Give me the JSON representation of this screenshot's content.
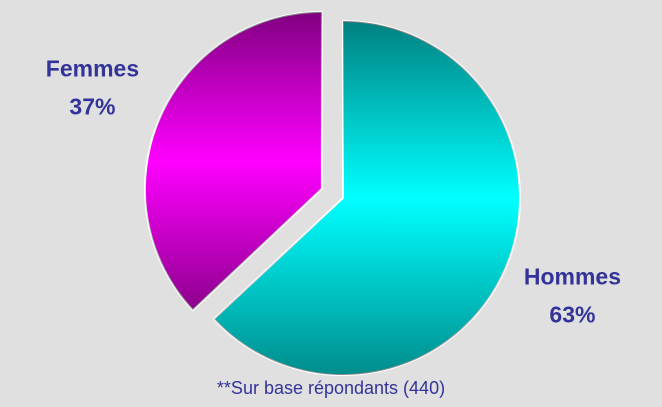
{
  "chart_data": {
    "type": "pie",
    "categories": [
      "Hommes",
      "Femmes"
    ],
    "values": [
      63,
      37
    ],
    "value_labels": [
      "63%",
      "37%"
    ],
    "colors": [
      "#00ffff",
      "#ff00ff"
    ],
    "explode": [
      false,
      true
    ],
    "note": "**Sur base répondants (440)"
  }
}
